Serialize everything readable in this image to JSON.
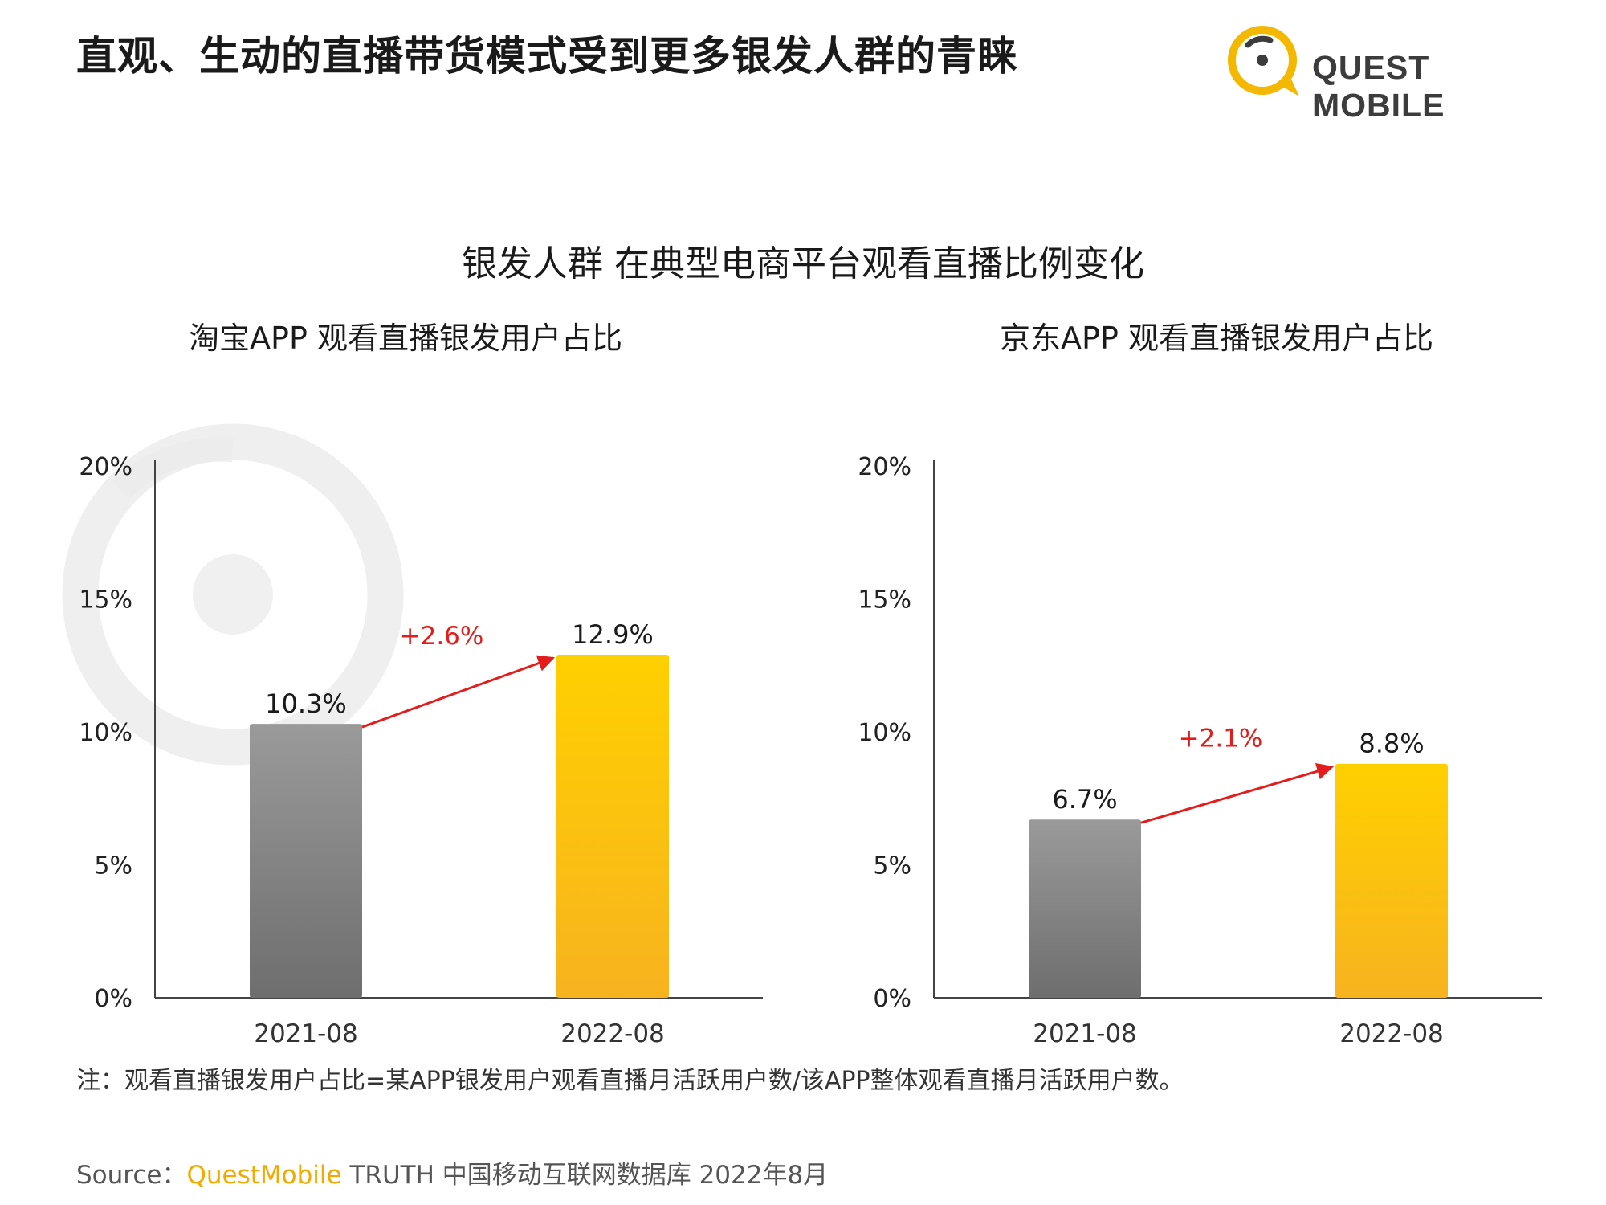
{
  "header": {
    "title": "直观、生动的直播带货模式受到更多银发人群的青睐",
    "logo_text": "QUEST MOBILE"
  },
  "main_title": "银发人群 在典型电商平台观看直播比例变化",
  "colors": {
    "bar_2021_top": "#9a9a9a",
    "bar_2021_bottom": "#6e6e6e",
    "bar_2022_top": "#ffd000",
    "bar_2022_bottom": "#f7b31f",
    "delta": "#e31c1c",
    "logo_yellow": "#f5b800",
    "logo_dark": "#3c3c3c"
  },
  "chart_data": [
    {
      "type": "bar",
      "title": "淘宝APP 观看直播银发用户占比",
      "categories": [
        "2021-08",
        "2022-08"
      ],
      "values": [
        10.3,
        12.9
      ],
      "value_labels": [
        "10.3%",
        "12.9%"
      ],
      "delta_label": "+2.6%",
      "ylim": [
        0,
        20
      ],
      "yticks": [
        "0%",
        "5%",
        "10%",
        "15%",
        "20%"
      ],
      "xlabel": "",
      "ylabel": ""
    },
    {
      "type": "bar",
      "title": "京东APP 观看直播银发用户占比",
      "categories": [
        "2021-08",
        "2022-08"
      ],
      "values": [
        6.7,
        8.8
      ],
      "value_labels": [
        "6.7%",
        "8.8%"
      ],
      "delta_label": "+2.1%",
      "ylim": [
        0,
        20
      ],
      "yticks": [
        "0%",
        "5%",
        "10%",
        "15%",
        "20%"
      ],
      "xlabel": "",
      "ylabel": ""
    }
  ],
  "note": "注：观看直播银发用户占比=某APP银发用户观看直播月活跃用户数/该APP整体观看直播月活跃用户数。",
  "source": {
    "prefix": "Source：",
    "brand": "QuestMobile",
    "rest": " TRUTH 中国移动互联网数据库 2022年8月"
  }
}
